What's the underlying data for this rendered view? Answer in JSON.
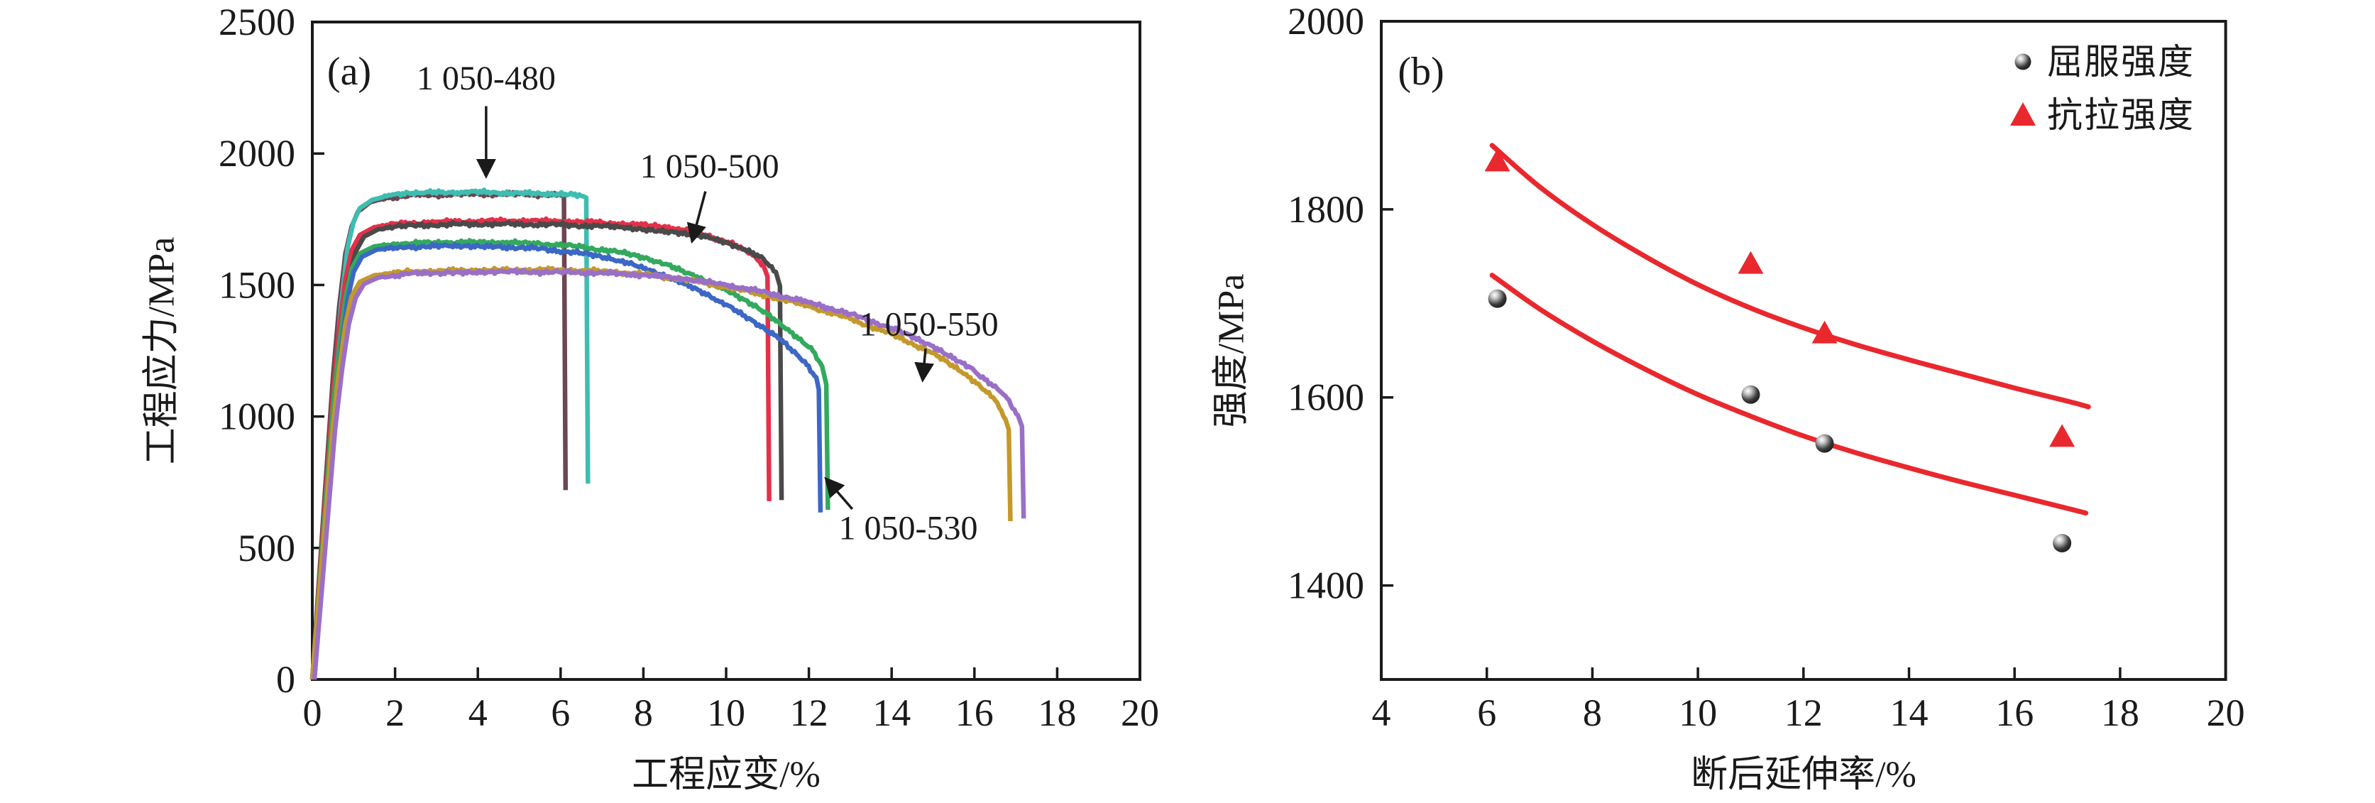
{
  "chart_data": [
    {
      "panel": "a",
      "type": "line",
      "tag": "(a)",
      "xlabel": "工程应变/%",
      "ylabel": "工程应力/MPa",
      "xlim": [
        0,
        20
      ],
      "ylim": [
        0,
        2500
      ],
      "x_ticks": [
        0,
        2,
        4,
        6,
        8,
        10,
        12,
        14,
        16,
        18,
        20
      ],
      "y_ticks": [
        0,
        500,
        1000,
        1500,
        2000,
        2500
      ],
      "grid": false,
      "frame_color": "#1a1a1a",
      "series": [
        {
          "name": "1 050-480",
          "color": "#6d4651",
          "points": [
            [
              0,
              0
            ],
            [
              0.3,
              700
            ],
            [
              0.5,
              1150
            ],
            [
              0.65,
              1420
            ],
            [
              0.8,
              1620
            ],
            [
              0.95,
              1722
            ],
            [
              1.1,
              1778
            ],
            [
              1.4,
              1815
            ],
            [
              1.8,
              1832
            ],
            [
              2.5,
              1841
            ],
            [
              3.5,
              1845
            ],
            [
              4.5,
              1846
            ],
            [
              5.5,
              1844
            ],
            [
              6.0,
              1841
            ],
            [
              6.08,
              1838
            ],
            [
              6.12,
              720
            ]
          ]
        },
        {
          "name": "1 050-480",
          "color": "#3fbdb1",
          "points": [
            [
              0.05,
              0
            ],
            [
              0.35,
              700
            ],
            [
              0.55,
              1150
            ],
            [
              0.7,
              1430
            ],
            [
              0.85,
              1640
            ],
            [
              1.0,
              1742
            ],
            [
              1.15,
              1792
            ],
            [
              1.45,
              1824
            ],
            [
              1.9,
              1841
            ],
            [
              2.6,
              1850
            ],
            [
              3.6,
              1854
            ],
            [
              4.6,
              1851
            ],
            [
              5.6,
              1846
            ],
            [
              6.3,
              1842
            ],
            [
              6.55,
              1837
            ],
            [
              6.62,
              1832
            ],
            [
              6.66,
              745
            ]
          ]
        },
        {
          "name": "1 050-500",
          "color": "#e43049",
          "points": [
            [
              0,
              0
            ],
            [
              0.3,
              650
            ],
            [
              0.5,
              1080
            ],
            [
              0.65,
              1330
            ],
            [
              0.8,
              1520
            ],
            [
              0.95,
              1632
            ],
            [
              1.15,
              1690
            ],
            [
              1.5,
              1720
            ],
            [
              2.0,
              1732
            ],
            [
              3.0,
              1740
            ],
            [
              4.0,
              1743
            ],
            [
              5.0,
              1744
            ],
            [
              6.0,
              1742
            ],
            [
              7.0,
              1737
            ],
            [
              8.0,
              1727
            ],
            [
              8.8,
              1713
            ],
            [
              9.5,
              1691
            ],
            [
              10.1,
              1659
            ],
            [
              10.6,
              1620
            ],
            [
              10.9,
              1575
            ],
            [
              11.0,
              1532
            ],
            [
              11.04,
              678
            ]
          ]
        },
        {
          "name": "1 050-500",
          "color": "#4a4a4a",
          "points": [
            [
              0.05,
              0
            ],
            [
              0.35,
              640
            ],
            [
              0.55,
              1070
            ],
            [
              0.72,
              1330
            ],
            [
              0.88,
              1520
            ],
            [
              1.05,
              1627
            ],
            [
              1.25,
              1684
            ],
            [
              1.6,
              1712
            ],
            [
              2.2,
              1724
            ],
            [
              3.2,
              1730
            ],
            [
              4.5,
              1732
            ],
            [
              6.0,
              1729
            ],
            [
              7.5,
              1720
            ],
            [
              8.8,
              1702
            ],
            [
              9.6,
              1678
            ],
            [
              10.3,
              1644
            ],
            [
              10.9,
              1600
            ],
            [
              11.2,
              1550
            ],
            [
              11.3,
              1496
            ],
            [
              11.34,
              682
            ]
          ]
        },
        {
          "name": "1 050-530",
          "color": "#33a95e",
          "points": [
            [
              0,
              0
            ],
            [
              0.3,
              620
            ],
            [
              0.5,
              1030
            ],
            [
              0.65,
              1270
            ],
            [
              0.8,
              1450
            ],
            [
              0.95,
              1562
            ],
            [
              1.15,
              1620
            ],
            [
              1.5,
              1647
            ],
            [
              2.2,
              1657
            ],
            [
              3.2,
              1662
            ],
            [
              4.5,
              1662
            ],
            [
              5.5,
              1657
            ],
            [
              6.5,
              1645
            ],
            [
              7.5,
              1622
            ],
            [
              8.3,
              1590
            ],
            [
              9.2,
              1540
            ],
            [
              10.0,
              1480
            ],
            [
              10.8,
              1408
            ],
            [
              11.5,
              1332
            ],
            [
              12.1,
              1248
            ],
            [
              12.32,
              1190
            ],
            [
              12.42,
              1122
            ],
            [
              12.46,
              645
            ]
          ]
        },
        {
          "name": "1 050-530",
          "color": "#3c67c5",
          "points": [
            [
              0.05,
              0
            ],
            [
              0.35,
              610
            ],
            [
              0.55,
              1020
            ],
            [
              0.7,
              1260
            ],
            [
              0.85,
              1442
            ],
            [
              1.0,
              1550
            ],
            [
              1.2,
              1607
            ],
            [
              1.55,
              1634
            ],
            [
              2.3,
              1644
            ],
            [
              3.3,
              1648
            ],
            [
              4.5,
              1646
            ],
            [
              5.5,
              1638
            ],
            [
              6.5,
              1621
            ],
            [
              7.4,
              1593
            ],
            [
              8.2,
              1554
            ],
            [
              9.0,
              1503
            ],
            [
              9.8,
              1441
            ],
            [
              10.6,
              1369
            ],
            [
              11.3,
              1293
            ],
            [
              11.9,
              1210
            ],
            [
              12.18,
              1148
            ],
            [
              12.24,
              1102
            ],
            [
              12.28,
              635
            ]
          ]
        },
        {
          "name": "1 050-550",
          "color": "#c4992b",
          "points": [
            [
              0,
              0
            ],
            [
              0.3,
              580
            ],
            [
              0.5,
              960
            ],
            [
              0.65,
              1180
            ],
            [
              0.8,
              1350
            ],
            [
              0.95,
              1457
            ],
            [
              1.15,
              1512
            ],
            [
              1.5,
              1537
            ],
            [
              2.2,
              1549
            ],
            [
              3.2,
              1554
            ],
            [
              4.5,
              1557
            ],
            [
              6.0,
              1557
            ],
            [
              7.0,
              1552
            ],
            [
              8.0,
              1541
            ],
            [
              9.0,
              1521
            ],
            [
              10.0,
              1493
            ],
            [
              11.0,
              1459
            ],
            [
              12.0,
              1419
            ],
            [
              13.0,
              1371
            ],
            [
              14.0,
              1313
            ],
            [
              15.0,
              1241
            ],
            [
              15.8,
              1161
            ],
            [
              16.5,
              1062
            ],
            [
              16.75,
              990
            ],
            [
              16.83,
              950
            ],
            [
              16.87,
              602
            ]
          ]
        },
        {
          "name": "1 050-550",
          "color": "#9a6fc7",
          "points": [
            [
              0.05,
              0
            ],
            [
              0.35,
              570
            ],
            [
              0.55,
              950
            ],
            [
              0.72,
              1180
            ],
            [
              0.88,
              1350
            ],
            [
              1.05,
              1452
            ],
            [
              1.25,
              1504
            ],
            [
              1.6,
              1529
            ],
            [
              2.3,
              1542
            ],
            [
              3.3,
              1548
            ],
            [
              4.5,
              1550
            ],
            [
              6.0,
              1549
            ],
            [
              7.0,
              1546
            ],
            [
              8.0,
              1538
            ],
            [
              9.0,
              1523
            ],
            [
              10.0,
              1500
            ],
            [
              11.0,
              1470
            ],
            [
              12.0,
              1434
            ],
            [
              13.0,
              1390
            ],
            [
              14.0,
              1336
            ],
            [
              15.0,
              1268
            ],
            [
              15.9,
              1187
            ],
            [
              16.75,
              1078
            ],
            [
              17.05,
              1005
            ],
            [
              17.15,
              962
            ],
            [
              17.19,
              612
            ]
          ]
        }
      ],
      "annotations": [
        {
          "text": "1 050-480",
          "text_xy": [
            4.2,
            2285
          ],
          "arrow": [
            [
              4.2,
              2180
            ],
            [
              4.2,
              1915
            ]
          ]
        },
        {
          "text": "1 050-500",
          "text_xy": [
            9.6,
            1950
          ],
          "arrow": [
            [
              9.5,
              1856
            ],
            [
              9.18,
              1668
            ]
          ]
        },
        {
          "text": "1 050-550",
          "text_xy": [
            14.9,
            1350
          ],
          "arrow": [
            [
              14.82,
              1258
            ],
            [
              14.75,
              1140
            ]
          ]
        },
        {
          "text": "1 050-530",
          "text_xy": [
            14.4,
            575
          ],
          "arrow": [
            [
              13.05,
              648
            ],
            [
              12.42,
              762
            ]
          ]
        }
      ]
    },
    {
      "panel": "b",
      "type": "scatter",
      "tag": "(b)",
      "xlabel": "断后延伸率/%",
      "ylabel": "强度/MPa",
      "xlim": [
        4,
        20
      ],
      "ylim": [
        1300,
        2000
      ],
      "x_ticks": [
        4,
        6,
        8,
        10,
        12,
        14,
        16,
        18,
        20
      ],
      "y_ticks": [
        1400,
        1600,
        1800,
        2000
      ],
      "grid": false,
      "frame_color": "#1a1a1a",
      "legend": [
        {
          "label": "屈服强度",
          "marker": "sphere-circle",
          "color": "#141414"
        },
        {
          "label": "抗拉强度",
          "marker": "triangle",
          "color": "#e9282e"
        }
      ],
      "series": [
        {
          "name": "屈服强度",
          "marker": "circle",
          "color": "#141414",
          "points": [
            [
              6.2,
              1705
            ],
            [
              11.0,
              1603
            ],
            [
              12.4,
              1551
            ],
            [
              16.9,
              1445
            ]
          ]
        },
        {
          "name": "抗拉强度",
          "marker": "triangle",
          "color": "#e9282e",
          "points": [
            [
              6.2,
              1851
            ],
            [
              11.0,
              1742
            ],
            [
              12.4,
              1668
            ],
            [
              16.9,
              1558
            ]
          ]
        }
      ],
      "trend_lines": [
        {
          "series": "抗拉强度",
          "color": "#e9282e",
          "points": [
            [
              6.1,
              1868
            ],
            [
              7,
              1824
            ],
            [
              8,
              1784
            ],
            [
              9,
              1750
            ],
            [
              10,
              1720
            ],
            [
              11,
              1695
            ],
            [
              12,
              1674
            ],
            [
              13,
              1656
            ],
            [
              14,
              1640
            ],
            [
              15,
              1625
            ],
            [
              16,
              1610
            ],
            [
              17,
              1596
            ],
            [
              17.4,
              1590
            ]
          ]
        },
        {
          "series": "屈服强度",
          "color": "#e9282e",
          "points": [
            [
              6.1,
              1730
            ],
            [
              7,
              1694
            ],
            [
              8,
              1660
            ],
            [
              9,
              1630
            ],
            [
              10,
              1603
            ],
            [
              11,
              1580
            ],
            [
              12,
              1559
            ],
            [
              13,
              1541
            ],
            [
              14,
              1525
            ],
            [
              15,
              1510
            ],
            [
              16,
              1496
            ],
            [
              17,
              1482
            ],
            [
              17.35,
              1477
            ]
          ]
        }
      ]
    }
  ]
}
